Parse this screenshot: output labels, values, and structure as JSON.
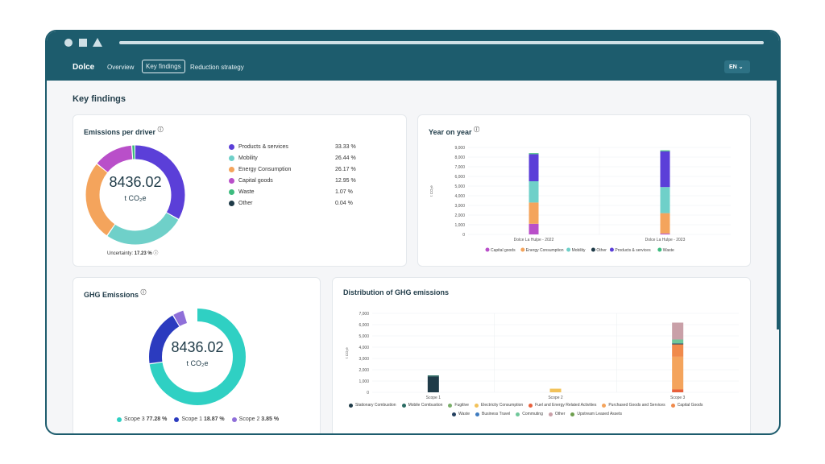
{
  "nav": {
    "brand": "Dolce",
    "links": [
      "Overview",
      "Key findings",
      "Reduction strategy"
    ],
    "language": "EN ⌄"
  },
  "page": {
    "title": "Key findings"
  },
  "emissions_per_driver": {
    "title": "Emissions per driver",
    "total": "8436.02",
    "unit": "t CO₂e",
    "uncertainty_label": "Uncertainty:",
    "uncertainty_value": "17.23 %",
    "items": [
      {
        "label": "Products & services",
        "pct": "33.33 %",
        "value": 33.33,
        "color": "#5b3fd8"
      },
      {
        "label": "Mobility",
        "pct": "26.44 %",
        "value": 26.44,
        "color": "#6fd0c9"
      },
      {
        "label": "Energy Consumption",
        "pct": "26.17 %",
        "value": 26.17,
        "color": "#f4a45c"
      },
      {
        "label": "Capital goods",
        "pct": "12.95 %",
        "value": 12.95,
        "color": "#b94fc9"
      },
      {
        "label": "Waste",
        "pct": "1.07 %",
        "value": 1.07,
        "color": "#3dbb7e"
      },
      {
        "label": "Other",
        "pct": "0.04 %",
        "value": 0.04,
        "color": "#1f3b48"
      }
    ]
  },
  "year_on_year": {
    "title": "Year on year",
    "ylabel": "t CO₂e",
    "legend": [
      {
        "label": "Capital goods",
        "color": "#b94fc9"
      },
      {
        "label": "Energy Consumption",
        "color": "#f4a45c"
      },
      {
        "label": "Mobility",
        "color": "#6fd0c9"
      },
      {
        "label": "Other",
        "color": "#1f3b48"
      },
      {
        "label": "Products & services",
        "color": "#5b3fd8"
      },
      {
        "label": "Waste",
        "color": "#3dbb7e"
      }
    ]
  },
  "ghg_emissions": {
    "title": "GHG Emissions",
    "total": "8436.02",
    "unit": "t CO₂e",
    "items": [
      {
        "label": "Scope 3",
        "pct": "77.28 %",
        "value": 77.28,
        "color": "#2fd0c3"
      },
      {
        "label": "Scope 1",
        "pct": "18.87 %",
        "value": 18.87,
        "color": "#2b3bbf"
      },
      {
        "label": "Scope 2",
        "pct": "3.85 %",
        "value": 3.85,
        "color": "#8f6fd9"
      }
    ]
  },
  "distribution": {
    "title": "Distribution of GHG emissions",
    "ylabel": "t CO₂e",
    "legend_row1": [
      {
        "label": "Stationary Combustion",
        "color": "#1f3b48"
      },
      {
        "label": "Mobile Combustion",
        "color": "#2a6b63"
      },
      {
        "label": "Fugitive",
        "color": "#7aae6a"
      },
      {
        "label": "Electricity Consumption",
        "color": "#f2c25a"
      },
      {
        "label": "Fuel and Energy Related Activities",
        "color": "#e8603c"
      },
      {
        "label": "Purchased Goods and Services",
        "color": "#f4a45c"
      },
      {
        "label": "Capital Goods",
        "color": "#f08a4b"
      }
    ],
    "legend_row2": [
      {
        "label": "Waste",
        "color": "#24405f"
      },
      {
        "label": "Business Travel",
        "color": "#3e7bbf"
      },
      {
        "label": "Commuting",
        "color": "#6fc89a"
      },
      {
        "label": "Other",
        "color": "#c9a0a8"
      },
      {
        "label": "Upstream Leased Assets",
        "color": "#6e9e4e"
      }
    ]
  },
  "chart_data": [
    {
      "type": "bar",
      "title": "Year on year",
      "ylabel": "t CO₂e",
      "ylim": [
        0,
        9000
      ],
      "yticks": [
        "9,000",
        "8,000",
        "7,000",
        "6,000",
        "5,000",
        "4,000",
        "3,000",
        "2,000",
        "1,000",
        "0"
      ],
      "categories": [
        "Dolce La Hulpe - 2022",
        "Dolce La Hulpe - 2023"
      ],
      "stacked": true,
      "series": [
        {
          "name": "Capital goods",
          "values": [
            1100,
            100
          ],
          "color": "#b94fc9"
        },
        {
          "name": "Energy Consumption",
          "values": [
            2200,
            2100
          ],
          "color": "#f4a45c"
        },
        {
          "name": "Mobility",
          "values": [
            2200,
            2700
          ],
          "color": "#6fd0c9"
        },
        {
          "name": "Other",
          "values": [
            0,
            0
          ],
          "color": "#1f3b48"
        },
        {
          "name": "Products & services",
          "values": [
            2800,
            3700
          ],
          "color": "#5b3fd8"
        },
        {
          "name": "Waste",
          "values": [
            100,
            100
          ],
          "color": "#3dbb7e"
        }
      ],
      "grid": true,
      "legend": "bottom"
    },
    {
      "type": "bar",
      "title": "Distribution of GHG emissions",
      "ylabel": "t CO₂e",
      "ylim": [
        0,
        7000
      ],
      "yticks": [
        "7,000",
        "6,000",
        "5,000",
        "4,000",
        "3,000",
        "2,000",
        "1,000",
        "0"
      ],
      "categories": [
        "Scope 1",
        "Scope 2",
        "Scope 3"
      ],
      "stacked": true,
      "series": [
        {
          "name": "Stationary Combustion",
          "values": [
            1400,
            0,
            0
          ],
          "color": "#1f3b48"
        },
        {
          "name": "Mobile Combustion",
          "values": [
            100,
            0,
            0
          ],
          "color": "#2a6b63"
        },
        {
          "name": "Electricity Consumption",
          "values": [
            0,
            320,
            0
          ],
          "color": "#f2c25a"
        },
        {
          "name": "Fuel and Energy Related Activities",
          "values": [
            0,
            0,
            250
          ],
          "color": "#e8603c"
        },
        {
          "name": "Purchased Goods and Services",
          "values": [
            0,
            0,
            2900
          ],
          "color": "#f4a45c"
        },
        {
          "name": "Capital Goods",
          "values": [
            0,
            0,
            1100
          ],
          "color": "#f08a4b"
        },
        {
          "name": "Waste",
          "values": [
            0,
            0,
            80
          ],
          "color": "#24405f"
        },
        {
          "name": "Commuting",
          "values": [
            0,
            0,
            350
          ],
          "color": "#6fc89a"
        },
        {
          "name": "Other",
          "values": [
            0,
            0,
            1500
          ],
          "color": "#c9a0a8"
        }
      ],
      "grid": true,
      "legend": "bottom"
    }
  ]
}
